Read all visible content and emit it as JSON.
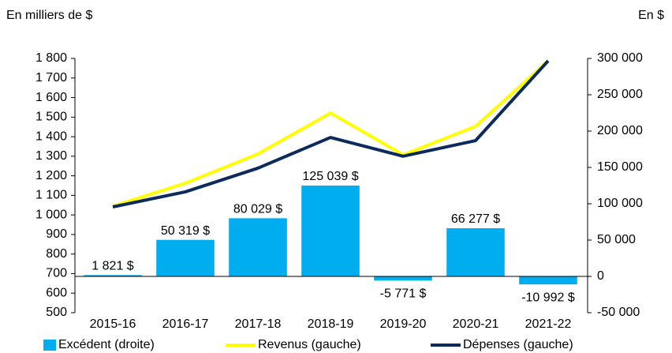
{
  "chart_data": {
    "type": "bar-line",
    "y_label": "En milliers de $",
    "y2_label": "En $",
    "categories": [
      "2015-16",
      "2016-17",
      "2017-18",
      "2018-19",
      "2019-20",
      "2020-21",
      "2021-22"
    ],
    "series": [
      {
        "name": "Excédent (droite)",
        "type": "bar",
        "axis": "y2",
        "color": "#00aeef",
        "values": [
          1821,
          50319,
          80029,
          125039,
          -5771,
          66277,
          -10992
        ],
        "value_labels": [
          "1 821 $",
          "50 319 $",
          "80 029 $",
          "125 039 $",
          "-5 771 $",
          "66 277 $",
          "-10 992 $"
        ]
      },
      {
        "name": "Revenus (gauche)",
        "type": "line",
        "axis": "y",
        "color": "#ffff00",
        "values": [
          1045,
          1162,
          1312,
          1521,
          1307,
          1453,
          1788
        ]
      },
      {
        "name": "Dépenses (gauche)",
        "type": "line",
        "axis": "y",
        "color": "#0d2a5c",
        "values": [
          1041,
          1118,
          1239,
          1396,
          1300,
          1380,
          1788
        ]
      }
    ],
    "ylim": [
      500,
      1800
    ],
    "yticks": [
      500,
      600,
      700,
      800,
      900,
      {
        "value": 1000,
        "label": "1 000"
      },
      {
        "value": 1100,
        "label": "1 100"
      },
      {
        "value": 1200,
        "label": "1 200"
      },
      {
        "value": 1300,
        "label": "1 300"
      },
      {
        "value": 1400,
        "label": "1 400"
      },
      {
        "value": 1500,
        "label": "1 500"
      },
      {
        "value": 1600,
        "label": "1 600"
      },
      {
        "value": 1700,
        "label": "1 700"
      },
      {
        "value": 1800,
        "label": "1 800"
      }
    ],
    "y2lim": [
      -50000,
      300000
    ],
    "y2ticks": [
      {
        "value": -50000,
        "label": "-50 000"
      },
      0,
      {
        "value": 50000,
        "label": "50 000"
      },
      {
        "value": 100000,
        "label": "100 000"
      },
      {
        "value": 150000,
        "label": "150 000"
      },
      {
        "value": 200000,
        "label": "200 000"
      },
      {
        "value": 250000,
        "label": "250 000"
      },
      {
        "value": 300000,
        "label": "300 000"
      }
    ]
  }
}
